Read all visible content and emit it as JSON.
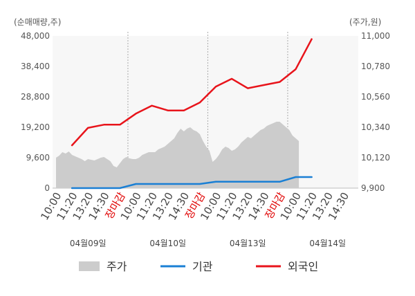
{
  "chart_data": {
    "type": "line",
    "left_unit_label": "(순매매량,주)",
    "right_unit_label": "(주가,원)",
    "left_axis": {
      "ylim": [
        0,
        48000
      ],
      "ticks": [
        "48,000",
        "38,400",
        "28,800",
        "19,200",
        "9,600",
        "0"
      ]
    },
    "right_axis": {
      "ylim": [
        9900,
        11000
      ],
      "ticks": [
        "11,000",
        "10,780",
        "10,560",
        "10,340",
        "10,120",
        "9,900"
      ]
    },
    "x_tick_labels": [
      {
        "label": "10:00",
        "slot": 0
      },
      {
        "label": "11:20",
        "slot": 1
      },
      {
        "label": "13:20",
        "slot": 2
      },
      {
        "label": "14:30",
        "slot": 3
      },
      {
        "label": "장마감",
        "slot": 4,
        "highlight": true
      },
      {
        "label": "10:00",
        "slot": 5
      },
      {
        "label": "11:20",
        "slot": 6
      },
      {
        "label": "13:20",
        "slot": 7
      },
      {
        "label": "14:30",
        "slot": 8
      },
      {
        "label": "장마감",
        "slot": 9,
        "highlight": true
      },
      {
        "label": "10:00",
        "slot": 10
      },
      {
        "label": "11:20",
        "slot": 11
      },
      {
        "label": "13:20",
        "slot": 12
      },
      {
        "label": "14:30",
        "slot": 13
      },
      {
        "label": "장마감",
        "slot": 14,
        "highlight": true
      },
      {
        "label": "10:00",
        "slot": 15
      },
      {
        "label": "11:20",
        "slot": 16
      },
      {
        "label": "13:20",
        "slot": 17
      },
      {
        "label": "14:30",
        "slot": 18
      }
    ],
    "dates": [
      {
        "label": "04월09일",
        "slot": 2
      },
      {
        "label": "04월10일",
        "slot": 7
      },
      {
        "label": "04월13일",
        "slot": 12
      },
      {
        "label": "04월14일",
        "slot": 17
      }
    ],
    "day_separators_at_slot": [
      4.5,
      9.5,
      14.5
    ],
    "series": [
      {
        "name": "주가",
        "axis": "right",
        "color": "#cccccc",
        "style": "area",
        "x": [
          0,
          0.2,
          0.4,
          0.6,
          0.8,
          1.0,
          1.2,
          1.4,
          1.6,
          1.8,
          2.0,
          2.2,
          2.4,
          2.6,
          2.8,
          3.0,
          3.2,
          3.4,
          3.6,
          3.8,
          4.0,
          4.2,
          4.4,
          4.6,
          4.8,
          5.0,
          5.2,
          5.4,
          5.6,
          5.8,
          6.0,
          6.2,
          6.4,
          6.6,
          6.8,
          7.0,
          7.2,
          7.4,
          7.6,
          7.8,
          8.0,
          8.2,
          8.4,
          8.6,
          8.8,
          9.0,
          9.2,
          9.4,
          9.6,
          9.8,
          10.0,
          10.2,
          10.4,
          10.6,
          10.8,
          11.0,
          11.2,
          11.4,
          11.6,
          11.8,
          12.0,
          12.2,
          12.4,
          12.6,
          12.8,
          13.0,
          13.2,
          13.4,
          13.6,
          13.8,
          14.0,
          14.2,
          14.4,
          14.6,
          14.8,
          15.0,
          15.2
        ],
        "values": [
          10120,
          10135,
          10160,
          10150,
          10165,
          10140,
          10130,
          10120,
          10110,
          10095,
          10110,
          10105,
          10100,
          10110,
          10120,
          10125,
          10110,
          10095,
          10060,
          10050,
          10080,
          10110,
          10125,
          10115,
          10110,
          10110,
          10120,
          10140,
          10150,
          10160,
          10160,
          10160,
          10180,
          10190,
          10200,
          10220,
          10240,
          10260,
          10300,
          10330,
          10310,
          10330,
          10340,
          10320,
          10310,
          10290,
          10240,
          10200,
          10170,
          10090,
          10110,
          10140,
          10180,
          10200,
          10190,
          10170,
          10180,
          10200,
          10230,
          10250,
          10270,
          10260,
          10280,
          10300,
          10320,
          10330,
          10350,
          10360,
          10370,
          10380,
          10380,
          10360,
          10340,
          10320,
          10280,
          10260,
          10240
        ]
      },
      {
        "name": "기관",
        "axis": "left",
        "color": "#1a7fd4",
        "style": "line",
        "x": [
          1.0,
          4.0,
          5.0,
          9.0,
          10.0,
          14.0,
          15.0,
          16.0
        ],
        "values": [
          0,
          0,
          1300,
          1300,
          2000,
          2000,
          3500,
          3500
        ]
      },
      {
        "name": "외국인",
        "axis": "left",
        "color": "#e8141b",
        "style": "line",
        "x": [
          1.0,
          2.0,
          3.0,
          4.0,
          5.0,
          6.0,
          7.0,
          8.0,
          9.0,
          10.0,
          11.0,
          12.0,
          13.0,
          14.0,
          15.0,
          16.0
        ],
        "values": [
          13500,
          19000,
          20000,
          20000,
          23500,
          26000,
          24500,
          24500,
          27000,
          32000,
          34500,
          31500,
          32500,
          33500,
          37500,
          47000
        ]
      }
    ],
    "legend": [
      {
        "label": "주가",
        "kind": "area",
        "color": "#cccccc"
      },
      {
        "label": "기관",
        "kind": "line",
        "color": "#1a7fd4"
      },
      {
        "label": "외국인",
        "kind": "line",
        "color": "#e8141b"
      }
    ]
  }
}
